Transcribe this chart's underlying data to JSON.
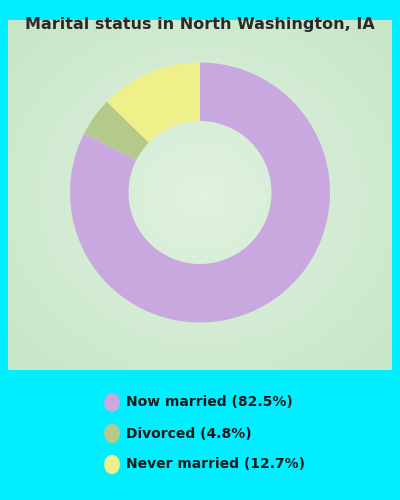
{
  "title": "Marital status in North Washington, IA",
  "slices": [
    82.5,
    4.8,
    12.7
  ],
  "labels": [
    "Now married (82.5%)",
    "Divorced (4.8%)",
    "Never married (12.7%)"
  ],
  "colors": [
    "#c9a8e0",
    "#b5c98a",
    "#f0f08a"
  ],
  "chart_bg_color": "#c8e8c8",
  "outer_bg_color": "#00eeff",
  "title_color": "#2a2a2a",
  "legend_text_color": "#1a1a1a",
  "startangle": 90,
  "figsize": [
    4.0,
    5.0
  ],
  "dpi": 100
}
